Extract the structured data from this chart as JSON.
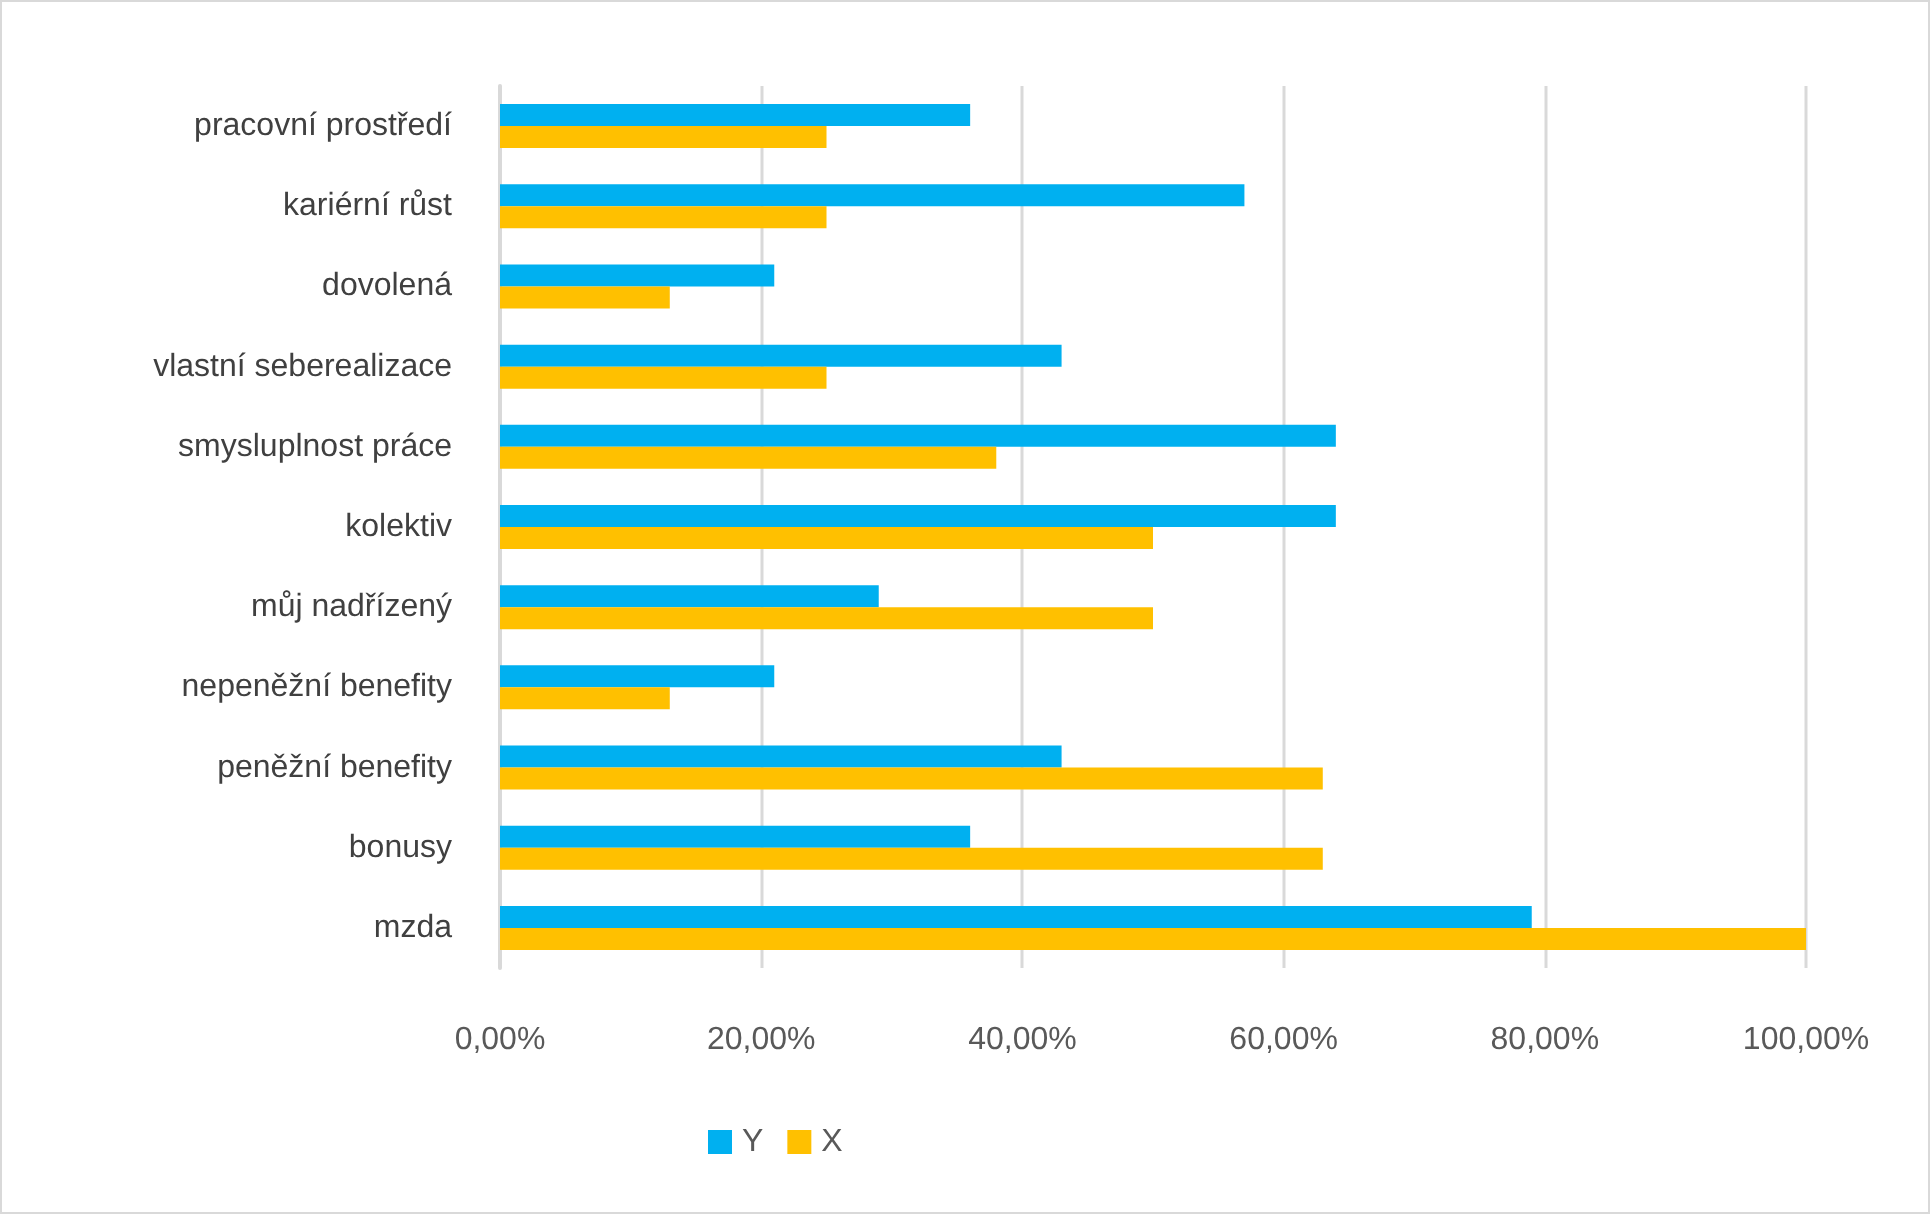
{
  "chart_data": {
    "type": "bar",
    "orientation": "horizontal",
    "categories": [
      "pracovní prostředí",
      "kariérní růst",
      "dovolená",
      "vlastní seberealizace",
      "smysluplnost práce",
      "kolektiv",
      "můj nadřízený",
      "nepeněžní benefity",
      "peněžní benefity",
      "bonusy",
      "mzda"
    ],
    "series": [
      {
        "name": "Y",
        "color": "#00b0f0",
        "values": [
          36,
          57,
          21,
          43,
          64,
          64,
          29,
          21,
          43,
          36,
          79
        ]
      },
      {
        "name": "X",
        "color": "#ffc000",
        "values": [
          25,
          25,
          13,
          25,
          38,
          50,
          50,
          13,
          63,
          63,
          100
        ]
      }
    ],
    "xlim": [
      0,
      100
    ],
    "xticks": [
      {
        "value": 0,
        "label": "0,00%"
      },
      {
        "value": 20,
        "label": "20,00%"
      },
      {
        "value": 40,
        "label": "40,00%"
      },
      {
        "value": 60,
        "label": "60,00%"
      },
      {
        "value": 80,
        "label": "80,00%"
      },
      {
        "value": 100,
        "label": "100,00%"
      }
    ],
    "grid": "x",
    "legend": "bottom"
  }
}
